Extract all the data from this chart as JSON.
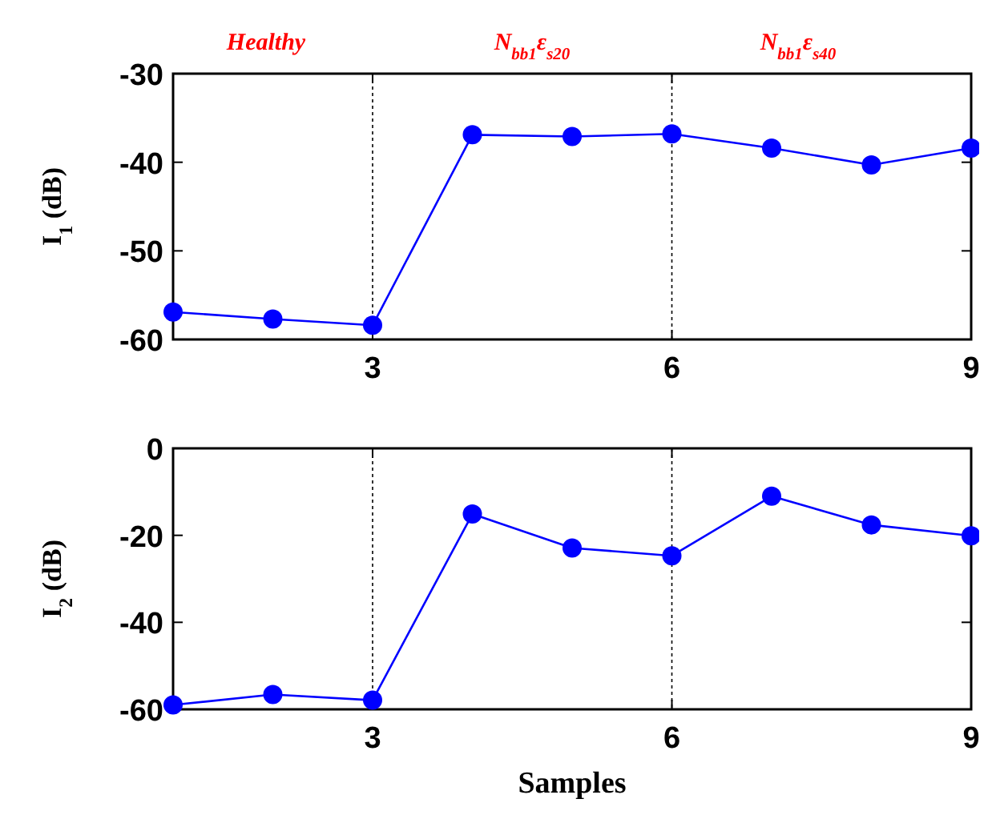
{
  "chart_data": [
    {
      "type": "line",
      "x": [
        1,
        2,
        3,
        4,
        5,
        6,
        7,
        8,
        9
      ],
      "xlim": [
        1,
        9
      ],
      "xticks": [
        3,
        6,
        9
      ],
      "ylim": [
        -60,
        -30
      ],
      "yticks": [
        -30,
        -40,
        -50,
        -60
      ],
      "ylabel": "I$_{1}$ (dB)",
      "marker": "circle",
      "line_style": "solid",
      "grid": false,
      "series": [
        {
          "color": "#0000ff",
          "values": [
            -56.9,
            -57.7,
            -58.4,
            -36.9,
            -37.1,
            -36.8,
            -38.4,
            -40.3,
            -38.4
          ]
        }
      ],
      "ref_lines": [
        {
          "axis": "x",
          "value": 3,
          "color": "#000000",
          "line_style": "dotted"
        },
        {
          "axis": "x",
          "value": 6,
          "color": "#000000",
          "line_style": "dotted"
        }
      ],
      "annotations": [
        "Healthy",
        "N$_{bb1}$ε$_{s20}$",
        "N$_{bb1}$ε$_{s40}$"
      ]
    },
    {
      "type": "line",
      "x": [
        1,
        2,
        3,
        4,
        5,
        6,
        7,
        8,
        9
      ],
      "xlim": [
        1,
        9
      ],
      "xticks": [
        3,
        6,
        9
      ],
      "ylim": [
        -60,
        0
      ],
      "yticks": [
        0,
        -20,
        -40,
        -60
      ],
      "ylabel": "I$_{2}$ (dB)",
      "xlabel": "Samples",
      "marker": "circle",
      "line_style": "solid",
      "grid": false,
      "series": [
        {
          "color": "#0000ff",
          "values": [
            -59.0,
            -56.6,
            -57.9,
            -15.1,
            -22.9,
            -24.7,
            -11.0,
            -17.6,
            -20.1
          ]
        }
      ],
      "ref_lines": [
        {
          "axis": "x",
          "value": 3,
          "color": "#000000",
          "line_style": "dotted"
        },
        {
          "axis": "x",
          "value": 6,
          "color": "#000000",
          "line_style": "dotted"
        }
      ]
    }
  ]
}
